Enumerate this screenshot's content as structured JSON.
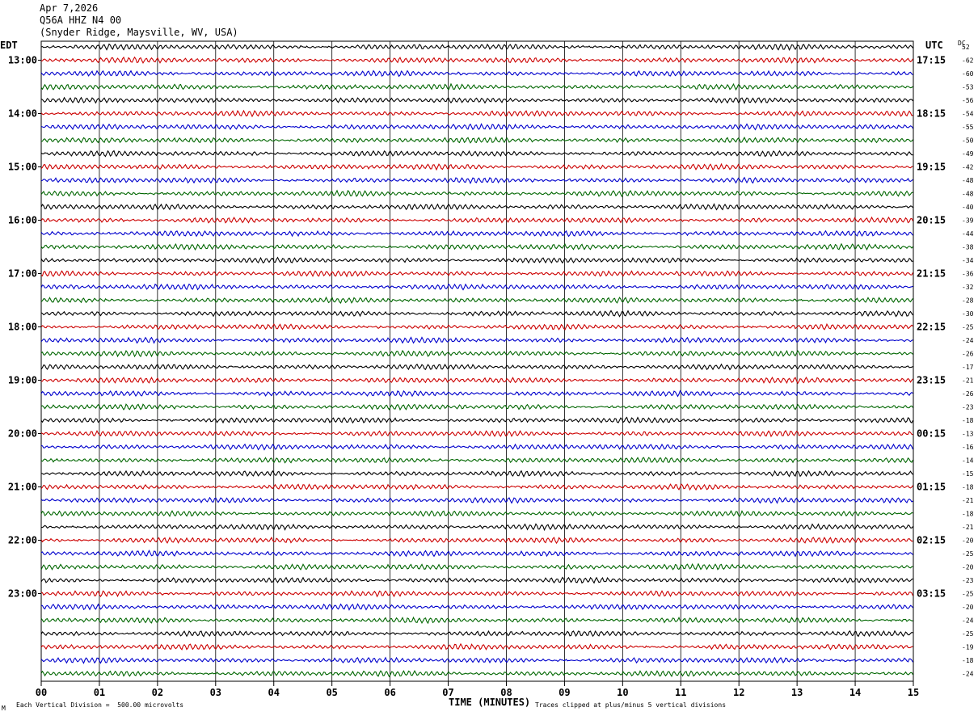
{
  "header": {
    "date": "Apr 7,2026",
    "station": "Q56A HHZ N4 00",
    "location": "(Snyder Ridge, Maysville, WV, USA)"
  },
  "left_axis_title": "EDT",
  "right_axis_title": "UTC",
  "dc_title": "DC",
  "x_axis_title": "TIME (MINUTES)",
  "footer_left": "Each Vertical Division =  500.00 microvolts",
  "footer_right": "Traces clipped at plus/minus 5 vertical divisions",
  "footer_corner": "M",
  "colors": {
    "trace_cycle": [
      "#000000",
      "#cc0000",
      "#0000cc",
      "#006600"
    ],
    "grid": "#000000",
    "background": "#ffffff"
  },
  "chart_data": {
    "type": "line",
    "description_kind": "helicorder seismogram",
    "x_ticks": [
      "00",
      "01",
      "02",
      "03",
      "04",
      "05",
      "06",
      "07",
      "08",
      "09",
      "10",
      "11",
      "12",
      "13",
      "14",
      "15"
    ],
    "xlim": [
      0,
      15
    ],
    "traces_per_hour": 4,
    "minutes_per_trace": 15,
    "left_hour_labels": [
      "13:00",
      "14:00",
      "15:00",
      "16:00",
      "17:00",
      "18:00",
      "19:00",
      "20:00",
      "21:00",
      "22:00",
      "23:00"
    ],
    "right_hour_labels": [
      "17:15",
      "18:15",
      "19:15",
      "20:15",
      "21:15",
      "22:15",
      "23:15",
      "00:15",
      "01:15",
      "02:15",
      "03:15"
    ],
    "dc_offsets": [
      "52",
      "-62",
      "-60",
      "-53",
      "-56",
      "-54",
      "-55",
      "-50",
      "-49",
      "-42",
      "-48",
      "-48",
      "-40",
      "-39",
      "-44",
      "-38",
      "-34",
      "-36",
      "-32",
      "-28",
      "-30",
      "-25",
      "-24",
      "-26",
      "-17",
      "-21",
      "-26",
      "-23",
      "-18",
      "-13",
      "-16",
      "-14",
      "-15",
      "-18",
      "-21",
      "-18",
      "-21",
      "-20",
      "-25",
      "-20",
      "-23",
      "-25",
      "-20",
      "-24",
      "-25",
      "-19",
      "-18",
      "-24"
    ],
    "first_row_hour_offset": 1
  }
}
